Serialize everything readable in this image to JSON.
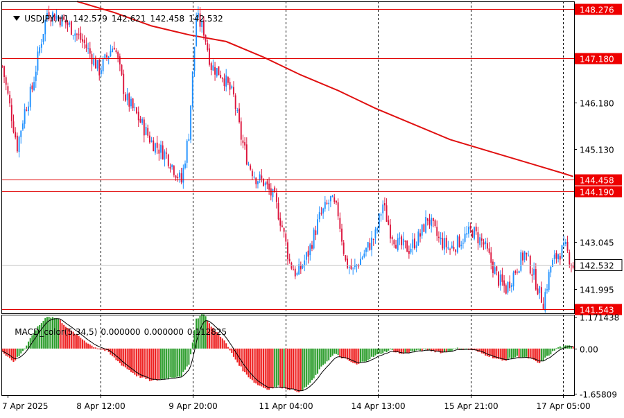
{
  "header": {
    "symbol": "USDJPY,H1",
    "open": "142.579",
    "high": "142.621",
    "low": "142.458",
    "close": "142.532"
  },
  "macd": {
    "title": "MACD_color(5,34,5)",
    "v1": "0.000000",
    "v2": "0.000000",
    "v3": "0.112825",
    "axis_labels": [
      "1.171438",
      "0.00",
      "-1.65809"
    ]
  },
  "price_axis": {
    "labels": [
      "146.180",
      "145.130",
      "143.045",
      "141.995"
    ],
    "range": [
      141.45,
      148.45
    ]
  },
  "level_lines": [
    {
      "price": 148.276,
      "label": "148.276"
    },
    {
      "price": 147.18,
      "label": "147.180"
    },
    {
      "price": 144.458,
      "label": "144.458"
    },
    {
      "price": 144.19,
      "label": "144.190"
    },
    {
      "price": 141.543,
      "label": "141.543"
    }
  ],
  "current_price": {
    "price": 142.532,
    "label": "142.532"
  },
  "time_axis": [
    "7 Apr 2025",
    "8 Apr 12:00",
    "9 Apr 20:00",
    "11 Apr 04:00",
    "14 Apr 13:00",
    "15 Apr 21:00",
    "17 Apr 05:00"
  ],
  "colors": {
    "bull": "#1e90ff",
    "bear": "#dc143c",
    "ma": "#e01010",
    "level": "#e00000",
    "level_label_bg": "#ee0000",
    "current_label_bg": "#ffffff",
    "macd_up": "#2e9e2e",
    "macd_down": "#ee2222",
    "grid": "#000000"
  },
  "chart_data": {
    "type": "candlestick",
    "symbol": "USDJPY,H1",
    "close_path": [
      [
        0,
        147.0
      ],
      [
        4,
        146.1
      ],
      [
        8,
        145.2
      ],
      [
        12,
        146.0
      ],
      [
        16,
        146.5
      ],
      [
        20,
        147.4
      ],
      [
        24,
        148.2
      ],
      [
        30,
        148.1
      ],
      [
        36,
        147.9
      ],
      [
        44,
        147.5
      ],
      [
        52,
        146.9
      ],
      [
        60,
        147.5
      ],
      [
        66,
        146.3
      ],
      [
        72,
        145.9
      ],
      [
        80,
        145.3
      ],
      [
        88,
        145.0
      ],
      [
        92,
        144.7
      ],
      [
        96,
        144.4
      ],
      [
        100,
        145.5
      ],
      [
        104,
        148.1
      ],
      [
        108,
        147.8
      ],
      [
        112,
        147.0
      ],
      [
        118,
        146.8
      ],
      [
        124,
        146.3
      ],
      [
        128,
        145.4
      ],
      [
        132,
        144.8
      ],
      [
        136,
        144.5
      ],
      [
        140,
        144.4
      ],
      [
        146,
        144.0
      ],
      [
        150,
        143.4
      ],
      [
        154,
        142.6
      ],
      [
        158,
        142.3
      ],
      [
        164,
        142.8
      ],
      [
        170,
        143.6
      ],
      [
        176,
        144.0
      ],
      [
        180,
        143.7
      ],
      [
        184,
        142.6
      ],
      [
        188,
        142.4
      ],
      [
        194,
        142.8
      ],
      [
        200,
        143.2
      ],
      [
        204,
        143.9
      ],
      [
        208,
        143.3
      ],
      [
        212,
        143.0
      ],
      [
        218,
        142.9
      ],
      [
        224,
        143.2
      ],
      [
        228,
        143.6
      ],
      [
        234,
        143.1
      ],
      [
        240,
        142.9
      ],
      [
        246,
        143.1
      ],
      [
        252,
        143.3
      ],
      [
        258,
        143.0
      ],
      [
        262,
        142.6
      ],
      [
        266,
        142.2
      ],
      [
        270,
        142.0
      ],
      [
        276,
        142.5
      ],
      [
        280,
        142.8
      ],
      [
        284,
        142.4
      ],
      [
        288,
        141.9
      ],
      [
        290,
        141.7
      ],
      [
        294,
        142.5
      ],
      [
        298,
        142.8
      ],
      [
        302,
        142.9
      ],
      [
        306,
        142.5
      ]
    ],
    "ma_path": [
      [
        40,
        148.45
      ],
      [
        60,
        148.2
      ],
      [
        80,
        147.9
      ],
      [
        100,
        147.7
      ],
      [
        120,
        147.55
      ],
      [
        140,
        147.2
      ],
      [
        160,
        146.8
      ],
      [
        180,
        146.45
      ],
      [
        200,
        146.05
      ],
      [
        220,
        145.7
      ],
      [
        240,
        145.35
      ],
      [
        260,
        145.1
      ],
      [
        280,
        144.85
      ],
      [
        300,
        144.6
      ],
      [
        306,
        144.52
      ]
    ],
    "macd_path": [
      [
        0,
        -0.1
      ],
      [
        6,
        -0.5
      ],
      [
        12,
        0.0
      ],
      [
        18,
        0.7
      ],
      [
        24,
        1.2
      ],
      [
        30,
        1.1
      ],
      [
        36,
        0.7
      ],
      [
        42,
        0.4
      ],
      [
        48,
        0.1
      ],
      [
        56,
        -0.1
      ],
      [
        64,
        -0.6
      ],
      [
        72,
        -1.0
      ],
      [
        80,
        -1.2
      ],
      [
        88,
        -1.1
      ],
      [
        96,
        -1.0
      ],
      [
        100,
        -0.6
      ],
      [
        104,
        1.1
      ],
      [
        108,
        1.3
      ],
      [
        112,
        0.8
      ],
      [
        118,
        0.4
      ],
      [
        124,
        -0.3
      ],
      [
        130,
        -0.9
      ],
      [
        136,
        -1.3
      ],
      [
        142,
        -1.5
      ],
      [
        148,
        -1.4
      ],
      [
        154,
        -1.5
      ],
      [
        160,
        -1.6
      ],
      [
        166,
        -1.2
      ],
      [
        172,
        -0.6
      ],
      [
        178,
        -0.2
      ],
      [
        184,
        -0.4
      ],
      [
        190,
        -0.6
      ],
      [
        196,
        -0.4
      ],
      [
        202,
        -0.2
      ],
      [
        208,
        -0.05
      ],
      [
        214,
        -0.2
      ],
      [
        220,
        -0.1
      ],
      [
        228,
        -0.05
      ],
      [
        236,
        -0.15
      ],
      [
        244,
        0.0
      ],
      [
        252,
        -0.05
      ],
      [
        260,
        -0.25
      ],
      [
        268,
        -0.45
      ],
      [
        276,
        -0.3
      ],
      [
        282,
        -0.35
      ],
      [
        288,
        -0.55
      ],
      [
        292,
        -0.3
      ],
      [
        298,
        0.05
      ],
      [
        306,
        0.11
      ]
    ]
  }
}
